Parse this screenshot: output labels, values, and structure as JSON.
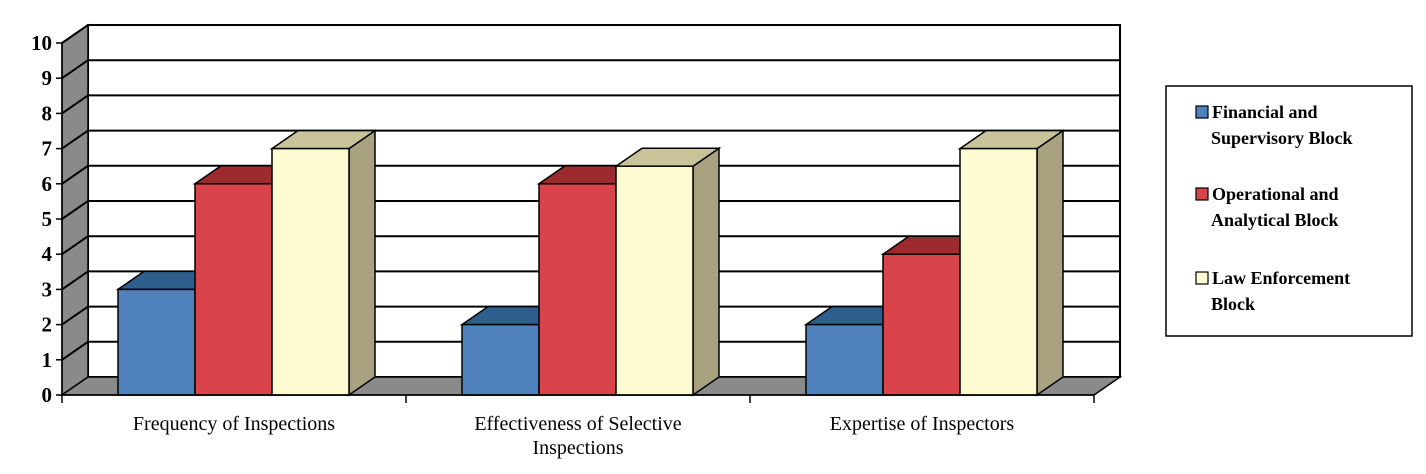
{
  "chart_data": {
    "type": "bar",
    "title": "",
    "xlabel": "",
    "ylabel": "",
    "ylim": [
      0,
      10
    ],
    "yticks": [
      0,
      1,
      2,
      3,
      4,
      5,
      6,
      7,
      8,
      9,
      10
    ],
    "grid": true,
    "legend_position": "right",
    "categories": [
      [
        "Frequency of Inspections"
      ],
      [
        "Effectiveness of Selective",
        "Inspections"
      ],
      [
        "Expertise of Inspectors"
      ]
    ],
    "series": [
      {
        "name": [
          "Financial and",
          "Supervisory Block"
        ],
        "values": [
          3,
          2,
          2
        ],
        "color": "#4f81bd",
        "top": "#2e5f8c",
        "side": "#2e5f8c"
      },
      {
        "name": [
          "Operational and",
          "Analytical Block"
        ],
        "values": [
          6,
          6,
          4
        ],
        "color": "#d9444a",
        "top": "#9c2a2e",
        "side": "#9c2a2e"
      },
      {
        "name": [
          "Law Enforcement",
          "Block"
        ],
        "values": [
          7,
          6.5,
          7
        ],
        "color": "#fdfbd2",
        "top": "#c9c39a",
        "side": "#a8a280"
      }
    ]
  }
}
